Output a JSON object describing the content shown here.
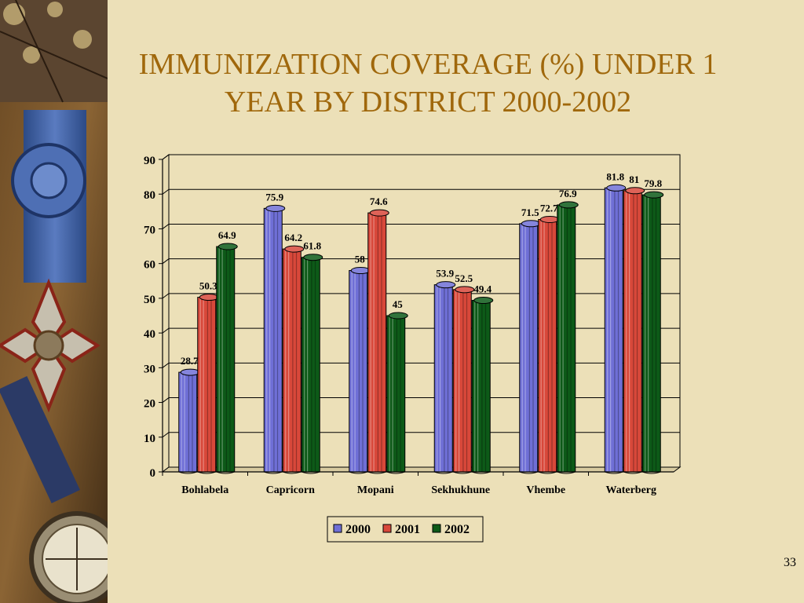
{
  "slide": {
    "title_line1": "IMMUNIZATION COVERAGE  (%) UNDER 1",
    "title_line2": "YEAR BY DISTRICT  2000-2002",
    "page_number": "33"
  },
  "colors": {
    "title": "#A0680C",
    "background": "#ECE0B8",
    "series_2000": "#6F6FD6",
    "series_2001": "#D8483A",
    "series_2002": "#0D5A18"
  },
  "chart_data": {
    "type": "bar",
    "title": "",
    "xlabel": "",
    "ylabel": "",
    "ylim": [
      0,
      90
    ],
    "yticks": [
      0,
      10,
      20,
      30,
      40,
      50,
      60,
      70,
      80,
      90
    ],
    "grid": true,
    "legend_position": "bottom",
    "categories": [
      "Bohlabela",
      "Capricorn",
      "Mopani",
      "Sekhukhune",
      "Vhembe",
      "Waterberg"
    ],
    "series": [
      {
        "name": "2000",
        "values": [
          28.7,
          75.9,
          58,
          53.9,
          71.5,
          81.8
        ],
        "color": "#6F6FD6"
      },
      {
        "name": "2001",
        "values": [
          50.3,
          64.2,
          74.6,
          52.5,
          72.7,
          81
        ],
        "color": "#D8483A"
      },
      {
        "name": "2002",
        "values": [
          64.9,
          61.8,
          45,
          49.4,
          76.9,
          79.8
        ],
        "color": "#0D5A18"
      }
    ]
  }
}
